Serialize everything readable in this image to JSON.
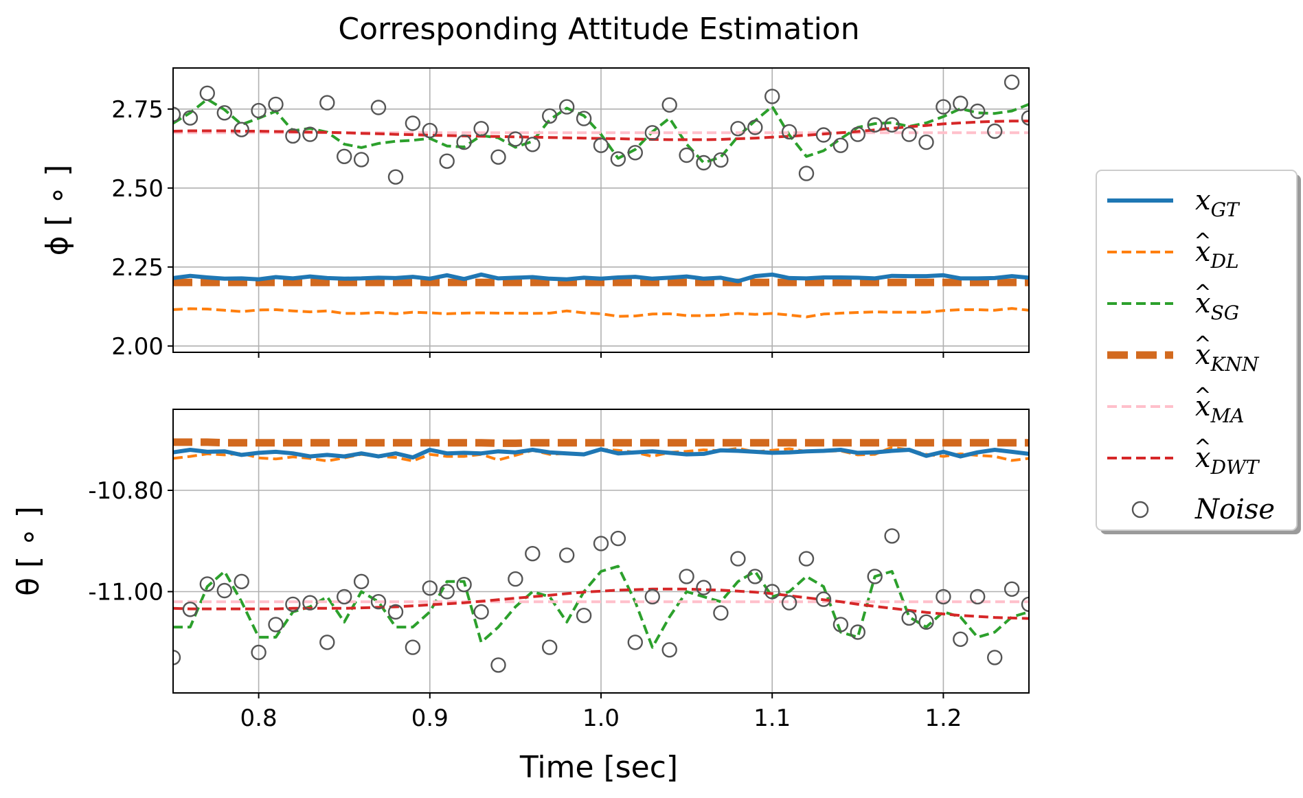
{
  "chart_data": {
    "type": "line",
    "title": "Corresponding Attitude Estimation",
    "xlabel": "Time [sec]",
    "xlim": [
      0.75,
      1.25
    ],
    "xticks": [
      0.8,
      0.9,
      1.0,
      1.1,
      1.2
    ],
    "xtick_labels": [
      "0.8",
      "0.9",
      "1.0",
      "1.1",
      "1.2"
    ],
    "grid": true,
    "legend_position": "right",
    "legend": [
      {
        "key": "gt",
        "label": "x",
        "sub": "GT",
        "hat": false,
        "color": "#1f77b4",
        "style": "solid"
      },
      {
        "key": "dl",
        "label": "x",
        "sub": "DL",
        "hat": true,
        "color": "#ff7f0e",
        "style": "dashed"
      },
      {
        "key": "sg",
        "label": "x",
        "sub": "SG",
        "hat": true,
        "color": "#2ca02c",
        "style": "dashed"
      },
      {
        "key": "knn",
        "label": "x",
        "sub": "KNN",
        "hat": true,
        "color": "#d2691e",
        "style": "dashed-thick"
      },
      {
        "key": "ma",
        "label": "x",
        "sub": "MA",
        "hat": true,
        "color": "#ffc0cb",
        "style": "dashed"
      },
      {
        "key": "dwt",
        "label": "x",
        "sub": "DWT",
        "hat": true,
        "color": "#d62728",
        "style": "dashed"
      },
      {
        "key": "noise",
        "label": "Noise",
        "sub": "",
        "hat": false,
        "color": "#555555",
        "style": "marker"
      }
    ],
    "panels": [
      {
        "name": "phi",
        "ylabel": "ϕ [ ∘ ]",
        "ylim": [
          1.98,
          2.88
        ],
        "yticks": [
          2.0,
          2.25,
          2.5,
          2.75
        ],
        "ytick_labels": [
          "2.00",
          "2.25",
          "2.50",
          "2.75"
        ],
        "x": [
          0.75,
          0.76,
          0.77,
          0.78,
          0.79,
          0.8,
          0.81,
          0.82,
          0.83,
          0.84,
          0.85,
          0.86,
          0.87,
          0.88,
          0.89,
          0.9,
          0.91,
          0.92,
          0.93,
          0.94,
          0.95,
          0.96,
          0.97,
          0.98,
          0.99,
          1.0,
          1.01,
          1.02,
          1.03,
          1.04,
          1.05,
          1.06,
          1.07,
          1.08,
          1.09,
          1.1,
          1.11,
          1.12,
          1.13,
          1.14,
          1.15,
          1.16,
          1.17,
          1.18,
          1.19,
          1.2,
          1.21,
          1.22,
          1.23,
          1.24,
          1.25
        ],
        "series": {
          "gt": [
            2.215,
            2.222,
            2.217,
            2.213,
            2.214,
            2.211,
            2.218,
            2.214,
            2.22,
            2.215,
            2.213,
            2.214,
            2.216,
            2.215,
            2.219,
            2.213,
            2.224,
            2.212,
            2.226,
            2.214,
            2.216,
            2.218,
            2.213,
            2.211,
            2.216,
            2.213,
            2.217,
            2.219,
            2.213,
            2.216,
            2.22,
            2.213,
            2.216,
            2.205,
            2.221,
            2.226,
            2.215,
            2.214,
            2.217,
            2.217,
            2.216,
            2.214,
            2.222,
            2.221,
            2.221,
            2.224,
            2.214,
            2.214,
            2.215,
            2.221,
            2.216
          ],
          "dl": [
            2.115,
            2.118,
            2.117,
            2.113,
            2.109,
            2.114,
            2.115,
            2.111,
            2.108,
            2.111,
            2.103,
            2.103,
            2.106,
            2.102,
            2.107,
            2.105,
            2.102,
            2.104,
            2.105,
            2.104,
            2.104,
            2.103,
            2.104,
            2.111,
            2.105,
            2.102,
            2.094,
            2.095,
            2.101,
            2.102,
            2.096,
            2.096,
            2.098,
            2.103,
            2.1,
            2.103,
            2.098,
            2.092,
            2.101,
            2.104,
            2.106,
            2.108,
            2.107,
            2.107,
            2.107,
            2.112,
            2.115,
            2.115,
            2.113,
            2.119,
            2.113
          ],
          "sg": [
            2.705,
            2.738,
            2.781,
            2.748,
            2.701,
            2.721,
            2.743,
            2.681,
            2.689,
            2.677,
            2.639,
            2.628,
            2.641,
            2.648,
            2.651,
            2.657,
            2.633,
            2.63,
            2.666,
            2.659,
            2.629,
            2.648,
            2.716,
            2.753,
            2.729,
            2.67,
            2.594,
            2.622,
            2.678,
            2.721,
            2.639,
            2.58,
            2.598,
            2.663,
            2.713,
            2.758,
            2.668,
            2.6,
            2.618,
            2.656,
            2.692,
            2.704,
            2.707,
            2.695,
            2.706,
            2.726,
            2.751,
            2.738,
            2.736,
            2.744,
            2.765
          ],
          "knn": [
            2.201,
            2.201,
            2.201,
            2.201,
            2.201,
            2.201,
            2.201,
            2.201,
            2.201,
            2.201,
            2.201,
            2.201,
            2.201,
            2.201,
            2.201,
            2.201,
            2.201,
            2.201,
            2.201,
            2.201,
            2.201,
            2.201,
            2.201,
            2.201,
            2.201,
            2.201,
            2.201,
            2.201,
            2.201,
            2.201,
            2.201,
            2.201,
            2.201,
            2.201,
            2.201,
            2.201,
            2.201,
            2.201,
            2.201,
            2.201,
            2.201,
            2.201,
            2.201,
            2.201,
            2.201,
            2.201,
            2.201,
            2.201,
            2.201,
            2.201,
            2.201
          ],
          "ma": [
            2.675,
            2.675,
            2.675,
            2.675,
            2.675,
            2.675,
            2.675,
            2.675,
            2.675,
            2.675,
            2.675,
            2.675,
            2.675,
            2.675,
            2.675,
            2.675,
            2.675,
            2.675,
            2.675,
            2.675,
            2.675,
            2.675,
            2.675,
            2.675,
            2.675,
            2.675,
            2.675,
            2.675,
            2.675,
            2.675,
            2.675,
            2.675,
            2.675,
            2.675,
            2.675,
            2.675,
            2.675,
            2.675,
            2.675,
            2.675,
            2.675,
            2.675,
            2.675,
            2.675,
            2.675,
            2.675,
            2.675,
            2.675,
            2.675,
            2.675,
            2.675
          ],
          "dwt": [
            2.68,
            2.681,
            2.681,
            2.681,
            2.68,
            2.68,
            2.679,
            2.678,
            2.677,
            2.676,
            2.675,
            2.673,
            2.672,
            2.67,
            2.669,
            2.667,
            2.666,
            2.665,
            2.664,
            2.663,
            2.662,
            2.661,
            2.66,
            2.659,
            2.658,
            2.657,
            2.656,
            2.655,
            2.654,
            2.653,
            2.653,
            2.653,
            2.654,
            2.656,
            2.658,
            2.661,
            2.664,
            2.667,
            2.671,
            2.675,
            2.679,
            2.684,
            2.689,
            2.694,
            2.698,
            2.703,
            2.706,
            2.709,
            2.711,
            2.712,
            2.712
          ],
          "noise": [
            2.733,
            2.722,
            2.8,
            2.738,
            2.685,
            2.745,
            2.765,
            2.665,
            2.67,
            2.77,
            2.6,
            2.59,
            2.755,
            2.535,
            2.705,
            2.682,
            2.585,
            2.645,
            2.688,
            2.598,
            2.655,
            2.638,
            2.728,
            2.757,
            2.72,
            2.635,
            2.592,
            2.612,
            2.675,
            2.763,
            2.604,
            2.58,
            2.589,
            2.688,
            2.692,
            2.79,
            2.678,
            2.546,
            2.668,
            2.635,
            2.67,
            2.7,
            2.7,
            2.67,
            2.645,
            2.757,
            2.768,
            2.743,
            2.68,
            2.835,
            2.722
          ]
        }
      },
      {
        "name": "theta",
        "ylabel": "θ [ ∘ ]",
        "ylim": [
          -11.2,
          -10.64
        ],
        "yticks": [
          -11.0,
          -10.8
        ],
        "ytick_labels": [
          "-11.00",
          "-10.80"
        ],
        "x": [
          0.75,
          0.76,
          0.77,
          0.78,
          0.79,
          0.8,
          0.81,
          0.82,
          0.83,
          0.84,
          0.85,
          0.86,
          0.87,
          0.88,
          0.89,
          0.9,
          0.91,
          0.92,
          0.93,
          0.94,
          0.95,
          0.96,
          0.97,
          0.98,
          0.99,
          1.0,
          1.01,
          1.02,
          1.03,
          1.04,
          1.05,
          1.06,
          1.07,
          1.08,
          1.09,
          1.1,
          1.11,
          1.12,
          1.13,
          1.14,
          1.15,
          1.16,
          1.17,
          1.18,
          1.19,
          1.2,
          1.21,
          1.22,
          1.23,
          1.24,
          1.25
        ],
        "series": {
          "gt": [
            -10.725,
            -10.72,
            -10.724,
            -10.723,
            -10.73,
            -10.726,
            -10.724,
            -10.727,
            -10.733,
            -10.73,
            -10.733,
            -10.727,
            -10.733,
            -10.727,
            -10.735,
            -10.72,
            -10.727,
            -10.726,
            -10.727,
            -10.723,
            -10.725,
            -10.72,
            -10.725,
            -10.727,
            -10.729,
            -10.719,
            -10.727,
            -10.725,
            -10.723,
            -10.726,
            -10.729,
            -10.728,
            -10.721,
            -10.722,
            -10.724,
            -10.726,
            -10.725,
            -10.723,
            -10.722,
            -10.72,
            -10.726,
            -10.725,
            -10.722,
            -10.72,
            -10.732,
            -10.724,
            -10.733,
            -10.725,
            -10.72,
            -10.724,
            -10.728
          ],
          "dl": [
            -10.737,
            -10.733,
            -10.728,
            -10.73,
            -10.727,
            -10.736,
            -10.738,
            -10.734,
            -10.737,
            -10.742,
            -10.736,
            -10.729,
            -10.733,
            -10.735,
            -10.742,
            -10.729,
            -10.733,
            -10.733,
            -10.729,
            -10.74,
            -10.731,
            -10.721,
            -10.729,
            -10.727,
            -10.729,
            -10.719,
            -10.721,
            -10.725,
            -10.733,
            -10.725,
            -10.723,
            -10.72,
            -10.722,
            -10.717,
            -10.724,
            -10.721,
            -10.718,
            -10.723,
            -10.723,
            -10.722,
            -10.73,
            -10.729,
            -10.715,
            -10.72,
            -10.729,
            -10.733,
            -10.728,
            -10.731,
            -10.733,
            -10.741,
            -10.737
          ],
          "sg": [
            -11.07,
            -11.07,
            -10.99,
            -10.96,
            -11.02,
            -11.09,
            -11.09,
            -11.04,
            -11.03,
            -11.01,
            -11.06,
            -11.0,
            -11.02,
            -11.07,
            -11.07,
            -11.04,
            -10.98,
            -10.98,
            -11.1,
            -11.07,
            -11.03,
            -11.0,
            -11.01,
            -11.06,
            -11.0,
            -10.96,
            -10.95,
            -11.02,
            -11.11,
            -11.05,
            -11.0,
            -11.01,
            -11.02,
            -10.98,
            -10.96,
            -11.01,
            -11.0,
            -10.97,
            -10.99,
            -11.08,
            -11.09,
            -10.97,
            -10.96,
            -11.05,
            -11.07,
            -11.04,
            -11.05,
            -11.09,
            -11.08,
            -11.05,
            -11.04
          ],
          "knn": [
            -10.705,
            -10.705,
            -10.705,
            -10.706,
            -10.706,
            -10.706,
            -10.706,
            -10.706,
            -10.706,
            -10.706,
            -10.706,
            -10.706,
            -10.706,
            -10.706,
            -10.706,
            -10.706,
            -10.706,
            -10.706,
            -10.706,
            -10.707,
            -10.707,
            -10.706,
            -10.706,
            -10.706,
            -10.706,
            -10.706,
            -10.706,
            -10.706,
            -10.706,
            -10.706,
            -10.706,
            -10.706,
            -10.706,
            -10.706,
            -10.706,
            -10.706,
            -10.706,
            -10.706,
            -10.706,
            -10.706,
            -10.706,
            -10.706,
            -10.706,
            -10.706,
            -10.706,
            -10.706,
            -10.706,
            -10.706,
            -10.706,
            -10.706,
            -10.706
          ],
          "ma": [
            -11.02,
            -11.02,
            -11.02,
            -11.02,
            -11.02,
            -11.02,
            -11.02,
            -11.02,
            -11.02,
            -11.02,
            -11.02,
            -11.02,
            -11.02,
            -11.02,
            -11.02,
            -11.02,
            -11.02,
            -11.02,
            -11.02,
            -11.02,
            -11.02,
            -11.02,
            -11.02,
            -11.02,
            -11.02,
            -11.02,
            -11.02,
            -11.02,
            -11.02,
            -11.02,
            -11.02,
            -11.02,
            -11.02,
            -11.02,
            -11.02,
            -11.02,
            -11.02,
            -11.02,
            -11.02,
            -11.02,
            -11.02,
            -11.02,
            -11.02,
            -11.02,
            -11.02,
            -11.02,
            -11.02,
            -11.02,
            -11.02,
            -11.02,
            -11.02
          ],
          "dwt": [
            -11.033,
            -11.034,
            -11.034,
            -11.034,
            -11.034,
            -11.034,
            -11.034,
            -11.033,
            -11.033,
            -11.033,
            -11.033,
            -11.032,
            -11.031,
            -11.03,
            -11.028,
            -11.026,
            -11.024,
            -11.022,
            -11.019,
            -11.016,
            -11.013,
            -11.01,
            -11.007,
            -11.004,
            -11.001,
            -10.999,
            -10.997,
            -10.996,
            -10.995,
            -10.995,
            -10.995,
            -10.996,
            -10.997,
            -10.999,
            -11.001,
            -11.004,
            -11.008,
            -11.012,
            -11.016,
            -11.02,
            -11.025,
            -11.029,
            -11.033,
            -11.037,
            -11.041,
            -11.044,
            -11.047,
            -11.049,
            -11.051,
            -11.052,
            -11.053
          ],
          "noise": [
            -11.13,
            -11.035,
            -10.985,
            -10.998,
            -10.98,
            -11.12,
            -11.065,
            -11.025,
            -11.022,
            -11.1,
            -11.01,
            -10.98,
            -11.02,
            -11.04,
            -11.11,
            -10.993,
            -11.0,
            -10.986,
            -11.04,
            -11.145,
            -10.975,
            -10.925,
            -11.11,
            -10.928,
            -11.047,
            -10.905,
            -10.895,
            -11.1,
            -11.01,
            -11.115,
            -10.97,
            -10.992,
            -11.042,
            -10.935,
            -10.97,
            -11.0,
            -11.022,
            -10.935,
            -11.015,
            -11.065,
            -11.08,
            -10.97,
            -10.89,
            -11.052,
            -11.06,
            -11.01,
            -11.094,
            -11.01,
            -11.13,
            -10.995,
            -11.025
          ]
        }
      }
    ]
  }
}
